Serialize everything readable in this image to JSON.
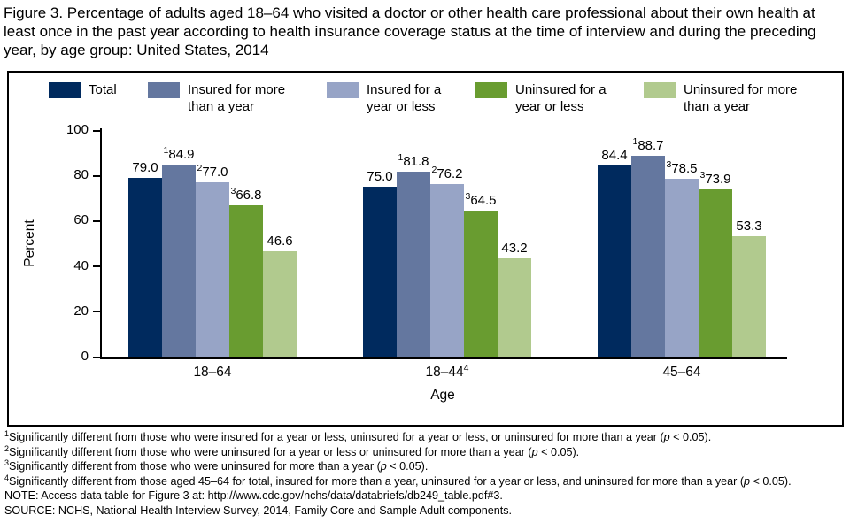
{
  "chart_data": {
    "type": "bar",
    "title": "Figure 3. Percentage of adults aged 18–64 who visited a doctor or other health care professional about their own health at least once in the past year according to health insurance coverage status at the time of interview and during the preceding year, by age group: United States, 2014",
    "xlabel": "Age",
    "ylabel": "Percent",
    "ylim": [
      0,
      100
    ],
    "yticks": [
      0,
      20,
      40,
      60,
      80,
      100
    ],
    "grid": false,
    "legend_position": "top",
    "categories": [
      {
        "label": "18–64",
        "sup": ""
      },
      {
        "label": "18–44",
        "sup": "4"
      },
      {
        "label": "45–64",
        "sup": ""
      }
    ],
    "series": [
      {
        "name": "Total",
        "color": "#002a5e",
        "values": [
          79.0,
          75.0,
          84.4
        ],
        "value_sups": [
          "",
          "",
          ""
        ]
      },
      {
        "name": "Insured for more than a year",
        "color": "#64779f",
        "values": [
          84.9,
          81.8,
          88.7
        ],
        "value_sups": [
          "1",
          "1",
          "1"
        ]
      },
      {
        "name": "Insured for a year or less",
        "color": "#97a4c6",
        "values": [
          77.0,
          76.2,
          78.5
        ],
        "value_sups": [
          "2",
          "2",
          "3"
        ]
      },
      {
        "name": "Uninsured for a year or less",
        "color": "#699c30",
        "values": [
          66.8,
          64.5,
          73.9
        ],
        "value_sups": [
          "3",
          "3",
          "3"
        ]
      },
      {
        "name": "Uninsured for more than a year",
        "color": "#b1ca8e",
        "values": [
          46.6,
          43.2,
          53.3
        ],
        "value_sups": [
          "",
          "",
          ""
        ]
      }
    ]
  },
  "footnotes": [
    {
      "sup": "1",
      "text": "Significantly different from those who were insured for a year or less, uninsured for a year or less, or uninsured for more than a year (p < 0.05)."
    },
    {
      "sup": "2",
      "text": "Significantly different from those who were uninsured for a year or less or uninsured for more than a year (p < 0.05)."
    },
    {
      "sup": "3",
      "text": "Significantly different from those who were uninsured for more than a year (p < 0.05)."
    },
    {
      "sup": "4",
      "text": "Significantly different from those aged 45–64 for total, insured for more than a year, uninsured for a year or less, and uninsured for more than a year (p < 0.05)."
    },
    {
      "sup": "",
      "text": "NOTE: Access data table for Figure 3 at: http://www.cdc.gov/nchs/data/databriefs/db249_table.pdf#3."
    },
    {
      "sup": "",
      "text": "SOURCE: NCHS, National Health Interview Survey, 2014, Family Core and Sample Adult components."
    }
  ]
}
